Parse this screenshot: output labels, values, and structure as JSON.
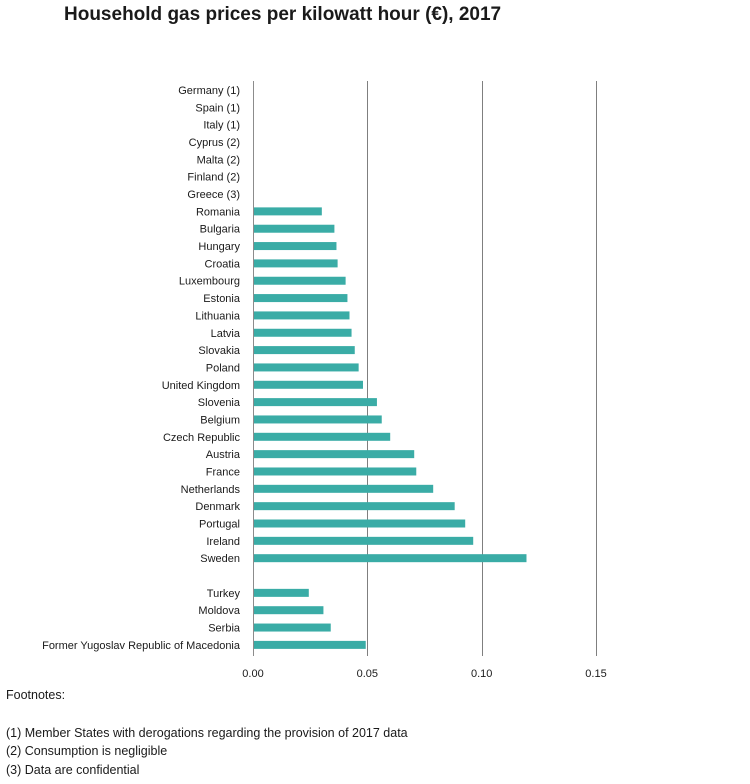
{
  "chart_data": {
    "type": "bar",
    "orientation": "horizontal",
    "title": "Household gas prices per kilowatt hour (€),  2017",
    "xlabel": "",
    "ylabel": "",
    "xlim": [
      0,
      0.15
    ],
    "xticks": [
      0,
      0.05,
      0.1,
      0.15
    ],
    "xtick_labels": [
      "0.00",
      "0.05",
      "0.10",
      "0.15"
    ],
    "grid": true,
    "bar_color": "#3aaca6",
    "grid_color": "#7f7f7f",
    "categories": [
      "Germany (1)",
      "Spain (1)",
      "Italy (1)",
      "Cyprus (2)",
      "Malta (2)",
      "Finland (2)",
      "Greece (3)",
      "Romania",
      "Bulgaria",
      "Hungary",
      "Croatia",
      "Luxembourg",
      "Estonia",
      "Lithuania",
      "Latvia",
      "Slovakia",
      "Poland",
      "United Kingdom",
      "Slovenia",
      "Belgium",
      "Czech Republic",
      "Austria",
      "France",
      "Netherlands",
      "Denmark",
      "Portugal",
      "Ireland",
      "Sweden",
      "",
      "Turkey",
      "Moldova",
      "Serbia",
      "Former Yugoslav Republic of Macedonia"
    ],
    "values": [
      null,
      null,
      null,
      null,
      null,
      null,
      null,
      0.0301,
      0.0356,
      0.0365,
      0.037,
      0.0405,
      0.0413,
      0.0422,
      0.0431,
      0.0445,
      0.0462,
      0.0481,
      0.0542,
      0.0563,
      0.06,
      0.0705,
      0.0714,
      0.0788,
      0.0882,
      0.0928,
      0.0963,
      0.1196,
      null,
      0.0244,
      0.0308,
      0.034,
      0.0493
    ]
  },
  "footnotes": {
    "heading": "Footnotes:",
    "items": [
      "(1)  Member States with derogations regarding the provision of 2017 data",
      "(2)  Consumption is negligible",
      "(3)  Data are confidential"
    ]
  }
}
